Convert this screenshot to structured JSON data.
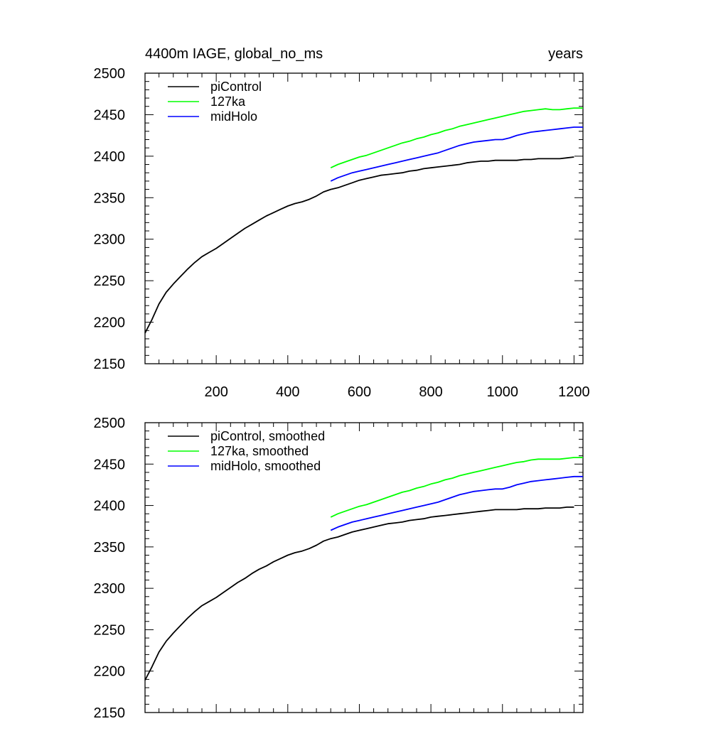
{
  "chart_data": [
    {
      "type": "line",
      "title": "4400m IAGE, global_no_ms",
      "units": "years",
      "xlabel": "",
      "ylabel": "",
      "xlim": [
        1,
        1225
      ],
      "ylim": [
        2150,
        2500
      ],
      "x_ticks": [
        200,
        400,
        600,
        800,
        1000,
        1200
      ],
      "y_ticks": [
        2150,
        2200,
        2250,
        2300,
        2350,
        2400,
        2450,
        2500
      ],
      "x_tick_labels_shown": true,
      "grid": false,
      "legend_position": "top-left",
      "series": [
        {
          "name": "piControl",
          "color": "#000000",
          "x": [
            1,
            20,
            40,
            60,
            80,
            100,
            120,
            140,
            160,
            180,
            200,
            220,
            240,
            260,
            280,
            300,
            320,
            340,
            360,
            380,
            400,
            420,
            440,
            460,
            480,
            500,
            520,
            540,
            560,
            580,
            600,
            620,
            640,
            660,
            680,
            700,
            720,
            740,
            760,
            780,
            800,
            820,
            840,
            860,
            880,
            900,
            920,
            940,
            960,
            980,
            1000,
            1020,
            1040,
            1060,
            1080,
            1100,
            1120,
            1140,
            1160,
            1180,
            1200
          ],
          "y": [
            2187,
            2203,
            2222,
            2236,
            2246,
            2255,
            2264,
            2272,
            2279,
            2284,
            2289,
            2295,
            2301,
            2307,
            2313,
            2318,
            2323,
            2328,
            2332,
            2336,
            2340,
            2343,
            2345,
            2348,
            2352,
            2357,
            2360,
            2362,
            2365,
            2368,
            2371,
            2373,
            2375,
            2377,
            2378,
            2379,
            2380,
            2382,
            2383,
            2385,
            2386,
            2387,
            2388,
            2389,
            2390,
            2392,
            2393,
            2394,
            2394,
            2395,
            2395,
            2395,
            2395,
            2396,
            2396,
            2397,
            2397,
            2397,
            2397,
            2398,
            2399
          ]
        },
        {
          "name": "127ka",
          "color": "#00ff00",
          "x": [
            520,
            540,
            560,
            580,
            600,
            620,
            640,
            660,
            680,
            700,
            720,
            740,
            760,
            780,
            800,
            820,
            840,
            860,
            880,
            900,
            920,
            940,
            960,
            980,
            1000,
            1020,
            1040,
            1060,
            1080,
            1100,
            1120,
            1140,
            1160,
            1180,
            1200,
            1225
          ],
          "y": [
            2386,
            2390,
            2393,
            2396,
            2399,
            2401,
            2404,
            2407,
            2410,
            2413,
            2416,
            2418,
            2421,
            2423,
            2426,
            2428,
            2431,
            2433,
            2436,
            2438,
            2440,
            2442,
            2444,
            2446,
            2448,
            2450,
            2452,
            2454,
            2455,
            2456,
            2457,
            2456,
            2456,
            2457,
            2458,
            2458
          ]
        },
        {
          "name": "midHolo",
          "color": "#0000ff",
          "x": [
            520,
            540,
            560,
            580,
            600,
            620,
            640,
            660,
            680,
            700,
            720,
            740,
            760,
            780,
            800,
            820,
            840,
            860,
            880,
            900,
            920,
            940,
            960,
            980,
            1000,
            1020,
            1040,
            1060,
            1080,
            1100,
            1120,
            1140,
            1160,
            1180,
            1200,
            1225
          ],
          "y": [
            2370,
            2374,
            2377,
            2380,
            2382,
            2384,
            2386,
            2388,
            2390,
            2392,
            2394,
            2396,
            2398,
            2400,
            2402,
            2404,
            2407,
            2410,
            2413,
            2415,
            2417,
            2418,
            2419,
            2420,
            2420,
            2422,
            2425,
            2427,
            2429,
            2430,
            2431,
            2432,
            2433,
            2434,
            2435,
            2435
          ]
        }
      ]
    },
    {
      "type": "line",
      "title": "",
      "xlabel": "",
      "ylabel": "",
      "xlim": [
        1,
        1225
      ],
      "ylim": [
        2150,
        2500
      ],
      "x_ticks": [
        200,
        400,
        600,
        800,
        1000,
        1200
      ],
      "y_ticks": [
        2150,
        2200,
        2250,
        2300,
        2350,
        2400,
        2450,
        2500
      ],
      "x_tick_labels_shown": false,
      "grid": false,
      "legend_position": "top-left",
      "series": [
        {
          "name": "piControl, smoothed",
          "color": "#000000",
          "x": [
            1,
            20,
            40,
            60,
            80,
            100,
            120,
            140,
            160,
            180,
            200,
            220,
            240,
            260,
            280,
            300,
            320,
            340,
            360,
            380,
            400,
            420,
            440,
            460,
            480,
            500,
            520,
            540,
            560,
            580,
            600,
            620,
            640,
            660,
            680,
            700,
            720,
            740,
            760,
            780,
            800,
            820,
            840,
            860,
            880,
            900,
            920,
            940,
            960,
            980,
            1000,
            1020,
            1040,
            1060,
            1080,
            1100,
            1120,
            1140,
            1160,
            1180,
            1200
          ],
          "y": [
            2189,
            2205,
            2223,
            2236,
            2246,
            2255,
            2264,
            2272,
            2279,
            2284,
            2289,
            2295,
            2301,
            2307,
            2312,
            2318,
            2323,
            2327,
            2332,
            2336,
            2340,
            2343,
            2345,
            2348,
            2352,
            2357,
            2360,
            2362,
            2365,
            2368,
            2370,
            2372,
            2374,
            2376,
            2378,
            2379,
            2380,
            2382,
            2383,
            2384,
            2386,
            2387,
            2388,
            2389,
            2390,
            2391,
            2392,
            2393,
            2394,
            2395,
            2395,
            2395,
            2395,
            2396,
            2396,
            2396,
            2397,
            2397,
            2397,
            2398,
            2398
          ]
        },
        {
          "name": "127ka, smoothed",
          "color": "#00ff00",
          "x": [
            520,
            540,
            560,
            580,
            600,
            620,
            640,
            660,
            680,
            700,
            720,
            740,
            760,
            780,
            800,
            820,
            840,
            860,
            880,
            900,
            920,
            940,
            960,
            980,
            1000,
            1020,
            1040,
            1060,
            1080,
            1100,
            1120,
            1140,
            1160,
            1180,
            1200,
            1225
          ],
          "y": [
            2386,
            2390,
            2393,
            2396,
            2399,
            2401,
            2404,
            2407,
            2410,
            2413,
            2416,
            2418,
            2421,
            2423,
            2426,
            2428,
            2431,
            2433,
            2436,
            2438,
            2440,
            2442,
            2444,
            2446,
            2448,
            2450,
            2452,
            2453,
            2455,
            2456,
            2456,
            2456,
            2456,
            2457,
            2458,
            2458
          ]
        },
        {
          "name": "midHolo, smoothed",
          "color": "#0000ff",
          "x": [
            520,
            540,
            560,
            580,
            600,
            620,
            640,
            660,
            680,
            700,
            720,
            740,
            760,
            780,
            800,
            820,
            840,
            860,
            880,
            900,
            920,
            940,
            960,
            980,
            1000,
            1020,
            1040,
            1060,
            1080,
            1100,
            1120,
            1140,
            1160,
            1180,
            1200,
            1225
          ],
          "y": [
            2370,
            2374,
            2377,
            2380,
            2382,
            2384,
            2386,
            2388,
            2390,
            2392,
            2394,
            2396,
            2398,
            2400,
            2402,
            2404,
            2407,
            2410,
            2413,
            2415,
            2417,
            2418,
            2419,
            2420,
            2420,
            2422,
            2425,
            2427,
            2429,
            2430,
            2431,
            2432,
            2433,
            2434,
            2435,
            2435
          ]
        }
      ]
    }
  ]
}
